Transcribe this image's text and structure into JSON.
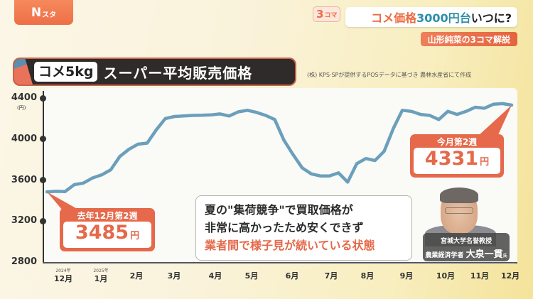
{
  "header": {
    "logo": {
      "main": "N",
      "small": "スタ"
    },
    "badge": {
      "num": "3",
      "suffix": "コマ"
    },
    "headline": {
      "part1": "コメ価格",
      "part2": "3000円台",
      "part3": "いつに?"
    },
    "subheadline": "山形純菜の3コマ解説"
  },
  "title": {
    "pill": "コメ5kg",
    "rest": "スーパー平均販売価格"
  },
  "source": "(株) KPS·SPが提供するPOSデータに基づき 農林水産省にて作成",
  "callouts": {
    "start": {
      "label": "去年12月第2週",
      "value": "3485",
      "unit": "円"
    },
    "end": {
      "label": "今月第2週",
      "value": "4331",
      "unit": "円"
    }
  },
  "comment": {
    "line1": "夏の\"集荷競争\"で買取価格が",
    "line2": "非常に高かったため安くできず",
    "line3": "業者間で様子見が続いている状態"
  },
  "expert": {
    "role": "宮城大学名誉教授",
    "field": "農業経済学者",
    "name": "大泉一貫",
    "suffix": "氏",
    "ruby": "かず ひろ"
  },
  "colors": {
    "line": "#6b9fbb",
    "accent": "#e5694a",
    "headline_blue": "#2c8fa8"
  },
  "chart_data": {
    "type": "line",
    "title": "コメ5kg スーパー平均販売価格",
    "ylabel": "(円)",
    "xlabel": "",
    "ylim": [
      2800,
      4400
    ],
    "yticks": [
      "4400",
      "4000",
      "3600",
      "3200",
      "2800"
    ],
    "xticks": [
      {
        "label": "12月",
        "year": "2024年"
      },
      {
        "label": "1月",
        "year": "2025年"
      },
      {
        "label": "2月"
      },
      {
        "label": "3月"
      },
      {
        "label": "4月"
      },
      {
        "label": "5月"
      },
      {
        "label": "6月"
      },
      {
        "label": "7月"
      },
      {
        "label": "8月"
      },
      {
        "label": "9月"
      },
      {
        "label": "10月"
      },
      {
        "label": "11月"
      },
      {
        "label": "12月"
      }
    ],
    "series": [
      {
        "name": "平均販売価格",
        "values": [
          3485,
          3490,
          3488,
          3555,
          3570,
          3620,
          3650,
          3700,
          3830,
          3900,
          3950,
          3960,
          4090,
          4200,
          4220,
          4225,
          4230,
          4232,
          4235,
          4245,
          4225,
          4265,
          4280,
          4260,
          4230,
          4190,
          3990,
          3850,
          3720,
          3660,
          3640,
          3640,
          3670,
          3580,
          3760,
          3810,
          3790,
          3880,
          4100,
          4280,
          4270,
          4240,
          4230,
          4190,
          4270,
          4240,
          4270,
          4310,
          4300,
          4340,
          4345,
          4331
        ]
      }
    ],
    "annotations": [
      "去年12月第2週 3485円",
      "今月第2週 4331円"
    ],
    "grid": false,
    "legend": "none"
  }
}
